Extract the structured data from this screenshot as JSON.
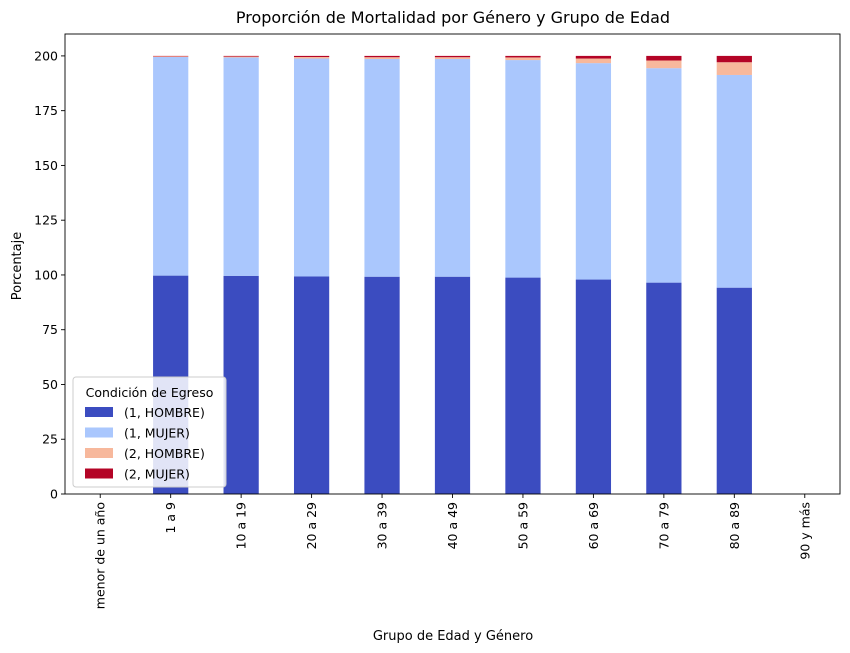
{
  "chart_data": {
    "type": "bar",
    "stacked": true,
    "title": "Proporción de Mortalidad por Género y Grupo de Edad",
    "xlabel": "Grupo de Edad y Género",
    "ylabel": "Porcentaje",
    "ylim": [
      0,
      210
    ],
    "yticks": [
      0,
      25,
      50,
      75,
      100,
      125,
      150,
      175,
      200
    ],
    "grid": false,
    "categories": [
      "menor de un año",
      "1 a 9",
      "10 a 19",
      "20 a 29",
      "30 a 39",
      "40 a 49",
      "50 a 59",
      "60 a 69",
      "70 a 79",
      "80 a 89",
      "90 y más"
    ],
    "series": [
      {
        "name": "(1, HOMBRE)",
        "color": "#3b4cc0",
        "values": [
          0,
          99.7,
          99.6,
          99.3,
          99.2,
          99.2,
          98.8,
          97.9,
          96.5,
          94.2,
          0
        ]
      },
      {
        "name": "(1, MUJER)",
        "color": "#aac7fd",
        "values": [
          0,
          99.8,
          99.7,
          99.5,
          99.4,
          99.4,
          99.3,
          98.8,
          97.9,
          97.1,
          0
        ]
      },
      {
        "name": "(2, HOMBRE)",
        "color": "#f7b89c",
        "values": [
          0,
          0.3,
          0.4,
          0.7,
          0.8,
          0.8,
          1.2,
          2.1,
          3.5,
          5.8,
          0
        ]
      },
      {
        "name": "(2, MUJER)",
        "color": "#b40426",
        "values": [
          0,
          0.2,
          0.3,
          0.5,
          0.6,
          0.6,
          0.7,
          1.2,
          2.1,
          2.9,
          0
        ]
      }
    ],
    "legend": {
      "title": "Condición de Egreso",
      "position": "lower-left"
    }
  }
}
